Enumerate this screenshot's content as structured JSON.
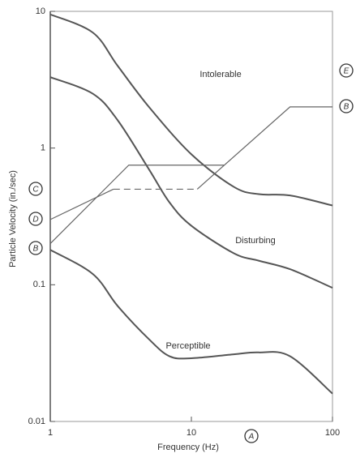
{
  "chart_data": {
    "type": "line",
    "xlabel": "Frequency (Hz)",
    "ylabel": "Particle Velocity (in./sec)",
    "log_x": true,
    "log_y": true,
    "xlim": [
      1,
      100
    ],
    "ylim": [
      0.01,
      10
    ],
    "xticks": [
      1,
      10,
      100
    ],
    "yticks": [
      0.01,
      0.1,
      1,
      10
    ],
    "series": [
      {
        "name": "Intolerable",
        "color": "#666666",
        "x": [
          1,
          2,
          3,
          5,
          10,
          20,
          30,
          50,
          100
        ],
        "values": [
          9.5,
          7,
          4,
          2,
          0.9,
          0.52,
          0.46,
          0.45,
          0.38
        ]
      },
      {
        "name": "Disturbing",
        "color": "#444444",
        "x": [
          1,
          2,
          3,
          5,
          7,
          10,
          20,
          30,
          50,
          100
        ],
        "values": [
          3.3,
          2.5,
          1.6,
          0.7,
          0.4,
          0.27,
          0.17,
          0.15,
          0.13,
          0.095
        ]
      },
      {
        "name": "Perceptible",
        "color": "#666666",
        "x": [
          1,
          2,
          3,
          5,
          7,
          10,
          20,
          30,
          50,
          100
        ],
        "values": [
          0.18,
          0.12,
          0.07,
          0.04,
          0.03,
          0.029,
          0.031,
          0.032,
          0.03,
          0.016
        ]
      }
    ],
    "lines": [
      {
        "x": [
          1,
          3.6,
          17
        ],
        "values": [
          0.2,
          0.75,
          0.75
        ],
        "dashed": false
      },
      {
        "x": [
          1,
          2.8
        ],
        "values": [
          0.3,
          0.5
        ],
        "dashed": false
      },
      {
        "x": [
          2.8,
          11
        ],
        "values": [
          0.5,
          0.5
        ],
        "dashed": true
      },
      {
        "x": [
          11,
          50,
          100
        ],
        "values": [
          0.5,
          2,
          2
        ],
        "dashed": false
      }
    ],
    "markers": [
      "C",
      "D",
      "B",
      "E",
      "B",
      "A"
    ]
  }
}
